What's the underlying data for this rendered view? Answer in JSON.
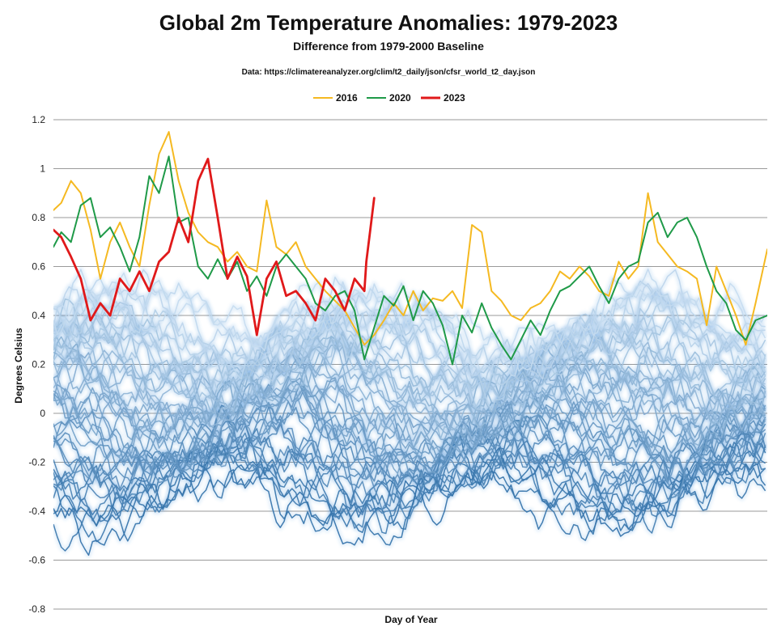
{
  "chart_data": {
    "type": "line",
    "title": "Global 2m Temperature Anomalies: 1979-2023",
    "subtitle": "Difference from 1979-2000 Baseline",
    "source": "Data:  https://climatereanalyzer.org/clim/t2_daily/json/cfsr_world_t2_day.json",
    "xlabel": "Day of Year",
    "ylabel": "Degrees Celsius",
    "ylim": [
      -0.8,
      1.2
    ],
    "yticks": [
      "1.2",
      "1",
      "0.8",
      "0.6",
      "0.4",
      "0.2",
      "0",
      "-0.2",
      "-0.4",
      "-0.6",
      "-0.8"
    ],
    "grid": true,
    "legend_position": "top-center",
    "background_years": "1979-2022",
    "background_color_old": "#2f6fa8",
    "background_color_new": "#c5dcf0",
    "series": [
      {
        "name": "2016",
        "color": "#f5b921",
        "x": [
          1,
          5,
          10,
          15,
          20,
          25,
          30,
          35,
          40,
          45,
          50,
          55,
          60,
          65,
          70,
          75,
          80,
          85,
          90,
          95,
          100,
          105,
          110,
          115,
          120,
          125,
          130,
          135,
          140,
          145,
          150,
          155,
          160,
          165,
          170,
          175,
          180,
          185,
          190,
          195,
          200,
          205,
          210,
          215,
          220,
          225,
          230,
          235,
          240,
          245,
          250,
          255,
          260,
          265,
          270,
          275,
          280,
          285,
          290,
          295,
          300,
          305,
          310,
          315,
          320,
          325,
          330,
          335,
          340,
          345,
          350,
          355,
          360,
          366
        ],
        "values": [
          0.83,
          0.86,
          0.95,
          0.9,
          0.75,
          0.55,
          0.7,
          0.78,
          0.68,
          0.6,
          0.85,
          1.06,
          1.15,
          0.95,
          0.82,
          0.74,
          0.7,
          0.68,
          0.62,
          0.66,
          0.6,
          0.58,
          0.87,
          0.68,
          0.65,
          0.7,
          0.6,
          0.55,
          0.5,
          0.46,
          0.42,
          0.35,
          0.28,
          0.32,
          0.38,
          0.45,
          0.4,
          0.5,
          0.42,
          0.47,
          0.46,
          0.5,
          0.43,
          0.77,
          0.74,
          0.5,
          0.46,
          0.4,
          0.38,
          0.43,
          0.45,
          0.5,
          0.58,
          0.55,
          0.6,
          0.56,
          0.5,
          0.48,
          0.62,
          0.55,
          0.6,
          0.9,
          0.7,
          0.65,
          0.6,
          0.58,
          0.55,
          0.36,
          0.6,
          0.5,
          0.4,
          0.28,
          0.45,
          0.67
        ]
      },
      {
        "name": "2020",
        "color": "#1f9a48",
        "x": [
          1,
          5,
          10,
          15,
          20,
          25,
          30,
          35,
          40,
          45,
          50,
          55,
          60,
          65,
          70,
          75,
          80,
          85,
          90,
          95,
          100,
          105,
          110,
          115,
          120,
          125,
          130,
          135,
          140,
          145,
          150,
          155,
          160,
          165,
          170,
          175,
          180,
          185,
          190,
          195,
          200,
          205,
          210,
          215,
          220,
          225,
          230,
          235,
          240,
          245,
          250,
          255,
          260,
          265,
          270,
          275,
          280,
          285,
          290,
          295,
          300,
          305,
          310,
          315,
          320,
          325,
          330,
          335,
          340,
          345,
          350,
          355,
          360,
          366
        ],
        "values": [
          0.68,
          0.74,
          0.7,
          0.85,
          0.88,
          0.72,
          0.76,
          0.68,
          0.58,
          0.72,
          0.97,
          0.9,
          1.05,
          0.78,
          0.8,
          0.6,
          0.55,
          0.63,
          0.55,
          0.62,
          0.5,
          0.56,
          0.48,
          0.6,
          0.65,
          0.6,
          0.55,
          0.45,
          0.42,
          0.48,
          0.5,
          0.42,
          0.22,
          0.35,
          0.48,
          0.44,
          0.52,
          0.38,
          0.5,
          0.45,
          0.36,
          0.2,
          0.4,
          0.33,
          0.45,
          0.35,
          0.28,
          0.22,
          0.3,
          0.38,
          0.32,
          0.42,
          0.5,
          0.52,
          0.56,
          0.6,
          0.52,
          0.45,
          0.55,
          0.6,
          0.62,
          0.78,
          0.82,
          0.72,
          0.78,
          0.8,
          0.72,
          0.6,
          0.5,
          0.45,
          0.34,
          0.3,
          0.38,
          0.4
        ]
      },
      {
        "name": "2023",
        "color": "#e0191a",
        "x": [
          1,
          5,
          10,
          15,
          20,
          25,
          30,
          35,
          40,
          45,
          50,
          55,
          60,
          65,
          70,
          75,
          80,
          85,
          90,
          95,
          100,
          105,
          110,
          115,
          120,
          125,
          130,
          135,
          140,
          145,
          150,
          155,
          160,
          161,
          163,
          165
        ],
        "values": [
          0.75,
          0.72,
          0.64,
          0.55,
          0.38,
          0.45,
          0.4,
          0.55,
          0.5,
          0.58,
          0.5,
          0.62,
          0.66,
          0.8,
          0.7,
          0.95,
          1.04,
          0.8,
          0.55,
          0.64,
          0.56,
          0.32,
          0.55,
          0.62,
          0.48,
          0.5,
          0.45,
          0.38,
          0.55,
          0.5,
          0.42,
          0.55,
          0.5,
          0.62,
          0.75,
          0.88
        ]
      }
    ]
  }
}
